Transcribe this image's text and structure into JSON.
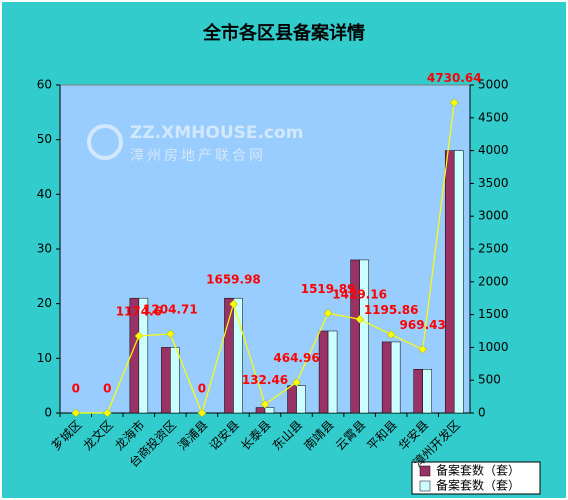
{
  "chart_data": {
    "type": "bar-line",
    "title": "全市各区县备案详情",
    "watermark": "ZZ.XMHOUSE.com",
    "watermark_sub": "漳州房地产联合网",
    "categories": [
      "芗城区",
      "龙文区",
      "龙海市",
      "台商投资区",
      "漳浦县",
      "诏安县",
      "长泰县",
      "东山县",
      "南靖县",
      "云霄县",
      "平和县",
      "华安县",
      "漳州开发区"
    ],
    "series": [
      {
        "name": "备案套数（套）",
        "type": "bar",
        "color": "#993366",
        "values": [
          0,
          0,
          21,
          12,
          0,
          21,
          1,
          5,
          15,
          28,
          13,
          8,
          48
        ]
      },
      {
        "name": "备案套数（套）",
        "type": "bar",
        "color": "#ccffff",
        "values": [
          0,
          0,
          21,
          12,
          0,
          21,
          1,
          5,
          15,
          28,
          13,
          8,
          48
        ]
      },
      {
        "type": "line",
        "axis": "y2",
        "color": "#ffff00",
        "label_color": "#ff0000",
        "values": [
          0,
          0,
          1174.6,
          1204.71,
          0,
          1659.98,
          132.46,
          464.96,
          1519.89,
          1429.16,
          1195.86,
          969.43,
          4730.64
        ]
      }
    ],
    "ylim": [
      0,
      60
    ],
    "yticks": [
      0,
      10,
      20,
      30,
      40,
      50,
      60
    ],
    "y2lim": [
      0,
      5000
    ],
    "y2ticks": [
      0,
      500,
      1000,
      1500,
      2000,
      2500,
      3000,
      3500,
      4000,
      4500,
      5000
    ]
  }
}
